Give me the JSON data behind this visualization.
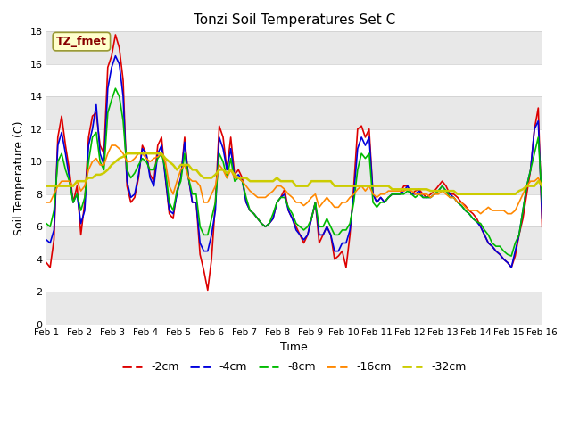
{
  "title": "Tonzi Soil Temperatures Set C",
  "xlabel": "Time",
  "ylabel": "Soil Temperature (C)",
  "ylim": [
    0,
    18
  ],
  "xlim": [
    0,
    15
  ],
  "xtick_labels": [
    "Feb 1",
    "Feb 2",
    "Feb 3",
    "Feb 4",
    "Feb 5",
    "Feb 6",
    "Feb 7",
    "Feb 8",
    "Feb 9",
    "Feb 10",
    "Feb 11",
    "Feb 12",
    "Feb 13",
    "Feb 14",
    "Feb 15",
    "Feb 16"
  ],
  "ytick_labels": [
    "0",
    "2",
    "4",
    "6",
    "8",
    "10",
    "12",
    "14",
    "16",
    "18"
  ],
  "background_color": "#ffffff",
  "plot_bg_color": "#ffffff",
  "annotation_text": "TZ_fmet",
  "annotation_color": "#880000",
  "annotation_bg": "#ffffcc",
  "annotation_border": "#999933",
  "series": {
    "-2cm": {
      "color": "#dd0000",
      "lw": 1.2
    },
    "-4cm": {
      "color": "#0000dd",
      "lw": 1.2
    },
    "-8cm": {
      "color": "#00bb00",
      "lw": 1.2
    },
    "-16cm": {
      "color": "#ff8800",
      "lw": 1.2
    },
    "-32cm": {
      "color": "#cccc00",
      "lw": 1.8
    }
  },
  "band_color": "#e8e8e8",
  "grid_color": "#cccccc",
  "t_2cm": [
    3.8,
    3.5,
    5.2,
    11.5,
    12.8,
    11.0,
    9.5,
    7.5,
    8.5,
    5.5,
    7.5,
    11.5,
    12.8,
    13.0,
    11.0,
    10.5,
    15.8,
    16.5,
    17.8,
    17.0,
    15.0,
    8.5,
    7.5,
    7.8,
    9.0,
    11.0,
    10.5,
    9.2,
    8.8,
    11.0,
    11.5,
    9.0,
    6.8,
    6.5,
    8.2,
    9.0,
    11.5,
    9.0,
    7.5,
    7.5,
    4.3,
    3.3,
    2.1,
    4.0,
    7.5,
    12.2,
    11.5,
    9.5,
    11.5,
    9.2,
    9.5,
    9.0,
    7.5,
    7.0,
    6.8,
    6.5,
    6.2,
    6.0,
    6.2,
    6.5,
    7.5,
    7.8,
    8.3,
    7.0,
    6.5,
    6.0,
    5.5,
    5.0,
    5.5,
    6.5,
    7.5,
    5.0,
    5.5,
    6.0,
    5.5,
    4.0,
    4.2,
    4.5,
    3.5,
    5.5,
    8.5,
    12.0,
    12.2,
    11.5,
    12.0,
    8.0,
    7.5,
    7.8,
    7.5,
    7.8,
    8.0,
    8.0,
    8.0,
    8.5,
    8.5,
    8.0,
    8.2,
    8.3,
    8.0,
    7.8,
    8.0,
    8.2,
    8.5,
    8.8,
    8.5,
    8.0,
    8.0,
    7.8,
    7.5,
    7.3,
    7.0,
    6.8,
    6.5,
    6.0,
    5.5,
    5.0,
    4.8,
    4.5,
    4.3,
    4.0,
    3.8,
    3.5,
    4.2,
    5.5,
    6.5,
    8.0,
    9.5,
    12.0,
    13.3,
    6.0
  ],
  "t_4cm": [
    5.2,
    5.0,
    5.8,
    11.0,
    11.8,
    10.5,
    9.0,
    7.5,
    8.0,
    6.2,
    7.0,
    11.0,
    12.0,
    13.5,
    10.5,
    9.8,
    14.5,
    15.8,
    16.5,
    16.0,
    14.0,
    8.8,
    7.8,
    8.0,
    9.2,
    10.8,
    10.5,
    9.0,
    8.5,
    10.5,
    11.0,
    9.0,
    7.0,
    6.8,
    8.0,
    9.0,
    11.2,
    9.0,
    7.5,
    7.5,
    5.0,
    4.5,
    4.5,
    5.5,
    7.0,
    11.5,
    10.8,
    9.5,
    10.8,
    9.0,
    9.2,
    8.8,
    7.5,
    7.0,
    6.8,
    6.5,
    6.2,
    6.0,
    6.2,
    6.5,
    7.5,
    7.8,
    8.0,
    7.0,
    6.5,
    5.8,
    5.5,
    5.2,
    5.5,
    6.5,
    7.5,
    5.5,
    5.5,
    6.0,
    5.5,
    4.5,
    4.5,
    5.0,
    5.0,
    5.8,
    8.0,
    10.8,
    11.5,
    11.0,
    11.5,
    8.0,
    7.5,
    7.8,
    7.5,
    7.8,
    8.0,
    8.0,
    8.0,
    8.2,
    8.5,
    8.0,
    8.0,
    8.2,
    7.8,
    7.8,
    7.8,
    8.0,
    8.2,
    8.5,
    8.2,
    8.0,
    7.8,
    7.5,
    7.3,
    7.0,
    6.8,
    6.5,
    6.3,
    6.0,
    5.5,
    5.0,
    4.8,
    4.5,
    4.3,
    4.0,
    3.8,
    3.5,
    4.5,
    5.5,
    7.0,
    8.5,
    9.5,
    12.0,
    12.5,
    6.5
  ],
  "t_8cm": [
    6.2,
    6.0,
    7.0,
    10.0,
    10.5,
    9.5,
    8.8,
    7.5,
    8.0,
    7.0,
    7.8,
    10.0,
    11.5,
    11.8,
    10.0,
    9.5,
    13.0,
    13.8,
    14.5,
    14.0,
    12.5,
    9.5,
    9.0,
    9.3,
    9.8,
    10.2,
    10.0,
    9.5,
    9.5,
    10.2,
    10.5,
    9.5,
    7.5,
    7.0,
    8.2,
    8.8,
    10.5,
    9.0,
    8.0,
    8.0,
    6.0,
    5.5,
    5.5,
    6.5,
    7.5,
    10.5,
    10.0,
    9.0,
    10.2,
    8.8,
    9.0,
    8.8,
    7.8,
    7.0,
    6.8,
    6.5,
    6.2,
    6.0,
    6.2,
    6.8,
    7.5,
    7.8,
    7.8,
    7.2,
    6.8,
    6.2,
    6.0,
    5.8,
    6.0,
    6.5,
    7.5,
    6.0,
    6.0,
    6.5,
    6.0,
    5.5,
    5.5,
    5.8,
    5.8,
    6.2,
    7.5,
    9.5,
    10.5,
    10.2,
    10.5,
    7.5,
    7.2,
    7.5,
    7.5,
    7.8,
    8.0,
    8.0,
    8.0,
    8.0,
    8.2,
    8.0,
    7.8,
    8.0,
    7.8,
    7.8,
    7.8,
    8.0,
    8.2,
    8.5,
    8.2,
    7.8,
    7.8,
    7.5,
    7.3,
    7.0,
    6.8,
    6.5,
    6.3,
    6.2,
    5.8,
    5.5,
    5.0,
    4.8,
    4.8,
    4.5,
    4.3,
    4.2,
    5.0,
    5.5,
    7.0,
    8.5,
    9.5,
    10.5,
    11.5,
    7.5
  ],
  "t_16cm": [
    7.5,
    7.5,
    8.0,
    8.5,
    8.8,
    8.8,
    8.8,
    8.5,
    8.8,
    8.2,
    8.5,
    9.5,
    10.0,
    10.2,
    9.8,
    9.8,
    10.5,
    11.0,
    11.0,
    10.8,
    10.5,
    10.0,
    10.0,
    10.2,
    10.5,
    10.5,
    10.2,
    10.0,
    10.2,
    10.3,
    10.5,
    10.0,
    8.5,
    8.0,
    8.8,
    9.5,
    9.8,
    9.0,
    8.8,
    8.8,
    8.5,
    7.5,
    7.5,
    8.0,
    8.5,
    9.8,
    9.5,
    9.0,
    9.5,
    9.0,
    9.0,
    8.8,
    8.5,
    8.2,
    8.0,
    7.8,
    7.8,
    7.8,
    8.0,
    8.2,
    8.5,
    8.5,
    8.3,
    8.0,
    7.8,
    7.5,
    7.5,
    7.3,
    7.5,
    7.8,
    8.0,
    7.2,
    7.5,
    7.8,
    7.5,
    7.2,
    7.2,
    7.5,
    7.5,
    7.8,
    8.0,
    8.3,
    8.5,
    8.2,
    8.5,
    8.0,
    7.8,
    8.0,
    8.0,
    8.2,
    8.2,
    8.2,
    8.2,
    8.2,
    8.3,
    8.2,
    8.0,
    8.0,
    8.0,
    8.0,
    7.8,
    8.0,
    8.0,
    8.2,
    8.0,
    7.8,
    7.8,
    7.5,
    7.5,
    7.2,
    7.0,
    7.0,
    7.0,
    6.8,
    7.0,
    7.2,
    7.0,
    7.0,
    7.0,
    7.0,
    6.8,
    6.8,
    7.0,
    7.5,
    8.0,
    8.5,
    8.8,
    8.8,
    9.0,
    8.5
  ],
  "t_32cm": [
    8.5,
    8.5,
    8.5,
    8.5,
    8.5,
    8.5,
    8.5,
    8.5,
    8.8,
    8.8,
    8.8,
    9.0,
    9.0,
    9.2,
    9.2,
    9.3,
    9.5,
    9.8,
    10.0,
    10.2,
    10.3,
    10.5,
    10.5,
    10.5,
    10.5,
    10.5,
    10.5,
    10.5,
    10.5,
    10.5,
    10.5,
    10.2,
    10.0,
    9.8,
    9.5,
    9.8,
    9.8,
    9.8,
    9.5,
    9.5,
    9.2,
    9.0,
    9.0,
    9.0,
    9.2,
    9.5,
    9.5,
    9.3,
    9.5,
    9.2,
    9.0,
    9.0,
    9.0,
    8.8,
    8.8,
    8.8,
    8.8,
    8.8,
    8.8,
    8.8,
    9.0,
    8.8,
    8.8,
    8.8,
    8.8,
    8.5,
    8.5,
    8.5,
    8.5,
    8.8,
    8.8,
    8.8,
    8.8,
    8.8,
    8.8,
    8.5,
    8.5,
    8.5,
    8.5,
    8.5,
    8.5,
    8.5,
    8.5,
    8.5,
    8.5,
    8.5,
    8.5,
    8.5,
    8.5,
    8.5,
    8.3,
    8.3,
    8.3,
    8.3,
    8.3,
    8.3,
    8.3,
    8.3,
    8.3,
    8.3,
    8.2,
    8.2,
    8.2,
    8.2,
    8.2,
    8.2,
    8.2,
    8.0,
    8.0,
    8.0,
    8.0,
    8.0,
    8.0,
    8.0,
    8.0,
    8.0,
    8.0,
    8.0,
    8.0,
    8.0,
    8.0,
    8.0,
    8.0,
    8.2,
    8.3,
    8.5,
    8.5,
    8.5,
    8.8,
    8.5
  ]
}
